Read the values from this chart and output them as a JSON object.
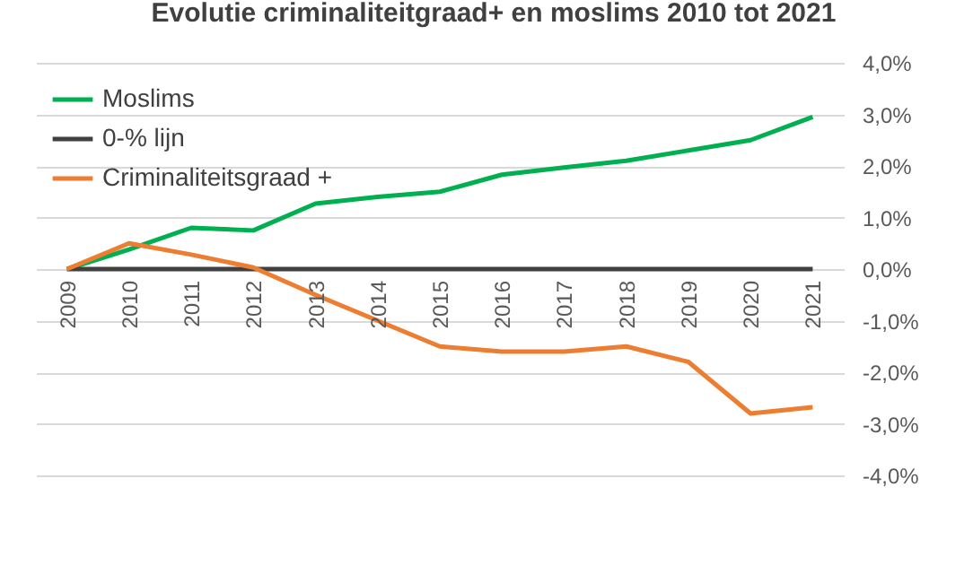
{
  "chart_data": {
    "type": "line",
    "title": "Evolutie criminaliteitgraad+  en moslims 2010 tot 2021",
    "categories": [
      "2009",
      "2010",
      "2011",
      "2012",
      "2013",
      "2014",
      "2015",
      "2016",
      "2017",
      "2018",
      "2019",
      "2020",
      "2021"
    ],
    "series": [
      {
        "name": "Moslims",
        "color": "#00b050",
        "values": [
          0,
          0.38,
          0.8,
          0.75,
          1.27,
          1.4,
          1.5,
          1.83,
          1.97,
          2.1,
          2.3,
          2.5,
          2.95
        ]
      },
      {
        "name": "0-% lijn",
        "color": "#404040",
        "values": [
          0,
          0,
          0,
          0,
          0,
          0,
          0,
          0,
          0,
          0,
          0,
          0,
          0
        ]
      },
      {
        "name": "Criminaliteitsgraad +",
        "color": "#ed7d31",
        "values": [
          0,
          0.5,
          0.28,
          0.03,
          -0.5,
          -1.0,
          -1.5,
          -1.6,
          -1.6,
          -1.5,
          -1.8,
          -2.8,
          -2.68
        ]
      }
    ],
    "ylim": [
      -4,
      4
    ],
    "yticks": [
      {
        "value": -4,
        "label": "-4,0%"
      },
      {
        "value": -3,
        "label": "-3,0%"
      },
      {
        "value": -2,
        "label": "-2,0%"
      },
      {
        "value": -1,
        "label": "-1,0%"
      },
      {
        "value": 0,
        "label": "0,0%"
      },
      {
        "value": 1,
        "label": "1,0%"
      },
      {
        "value": 2,
        "label": "2,0%"
      },
      {
        "value": 3,
        "label": "3,0%"
      },
      {
        "value": 4,
        "label": "4,0%"
      }
    ],
    "grid": "y",
    "legend": "top left",
    "marker": "none",
    "line_style": "solid"
  }
}
